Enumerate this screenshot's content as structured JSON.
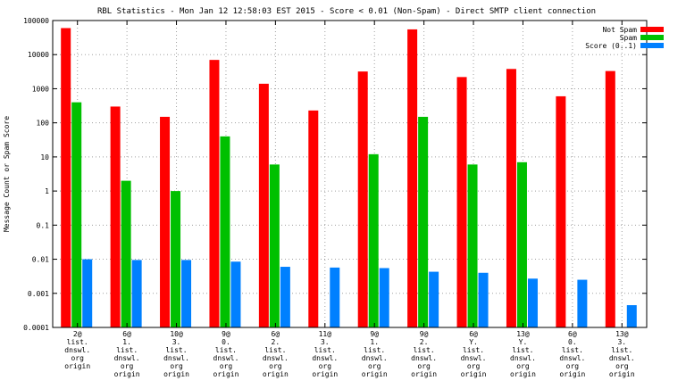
{
  "chart_data": {
    "type": "bar",
    "title": "RBL Statistics - Mon Jan 12 12:58:03 EST 2015 - Score < 0.01 (Non-Spam) - Direct SMTP client connection",
    "ylabel": "Message Count or Spam Score",
    "xlabel": "",
    "yscale": "log",
    "ylim": [
      0.0001,
      100000
    ],
    "ytick_labels": [
      "0.0001",
      "0.001",
      "0.01",
      "0.1",
      "1",
      "10",
      "100",
      "1000",
      "10000",
      "100000"
    ],
    "grid": true,
    "legend_position": "top-right",
    "categories": [
      [
        "2@",
        "list.",
        "dnswl.",
        "org",
        "origin"
      ],
      [
        "6@",
        "1.",
        "list.",
        "dnswl.",
        "org",
        "origin"
      ],
      [
        "10@",
        "3.",
        "list.",
        "dnswl.",
        "org",
        "origin"
      ],
      [
        "9@",
        "0.",
        "list.",
        "dnswl.",
        "org",
        "origin"
      ],
      [
        "6@",
        "2.",
        "list.",
        "dnswl.",
        "org",
        "origin"
      ],
      [
        "11@",
        "3.",
        "list.",
        "dnswl.",
        "org",
        "origin"
      ],
      [
        "9@",
        "1.",
        "list.",
        "dnswl.",
        "org",
        "origin"
      ],
      [
        "9@",
        "2.",
        "list.",
        "dnswl.",
        "org",
        "origin"
      ],
      [
        "6@",
        "Y.",
        "list.",
        "dnswl.",
        "org",
        "origin"
      ],
      [
        "13@",
        "Y.",
        "list.",
        "dnswl.",
        "org",
        "origin"
      ],
      [
        "6@",
        "0.",
        "list.",
        "dnswl.",
        "org",
        "origin"
      ],
      [
        "13@",
        "3.",
        "list.",
        "dnswl.",
        "org",
        "origin"
      ]
    ],
    "series": [
      {
        "name": "Not Spam",
        "color": "#ff0000",
        "values": [
          60000,
          300,
          150,
          7000,
          1400,
          230,
          3200,
          55000,
          2200,
          3800,
          600,
          3300
        ]
      },
      {
        "name": "Spam",
        "color": "#00c000",
        "values": [
          400,
          2,
          1,
          40,
          6,
          null,
          12,
          150,
          6,
          7,
          null,
          null
        ]
      },
      {
        "name": "Score (0..1)",
        "color": "#0080ff",
        "values": [
          0.01,
          0.0095,
          0.0095,
          0.0085,
          0.006,
          0.0057,
          0.0055,
          0.0043,
          0.004,
          0.0027,
          0.0025,
          0.00045
        ]
      }
    ]
  }
}
